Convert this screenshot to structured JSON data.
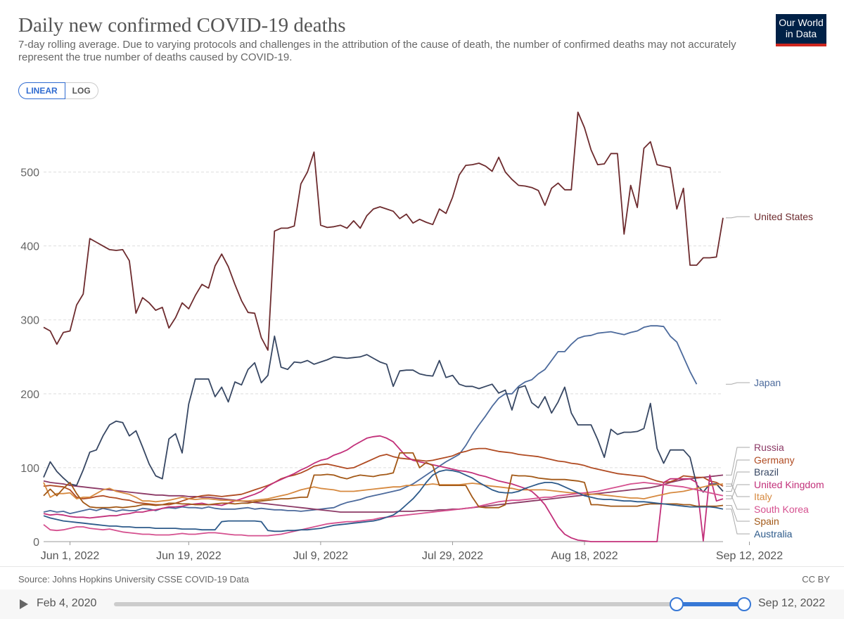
{
  "header": {
    "title": "Daily new confirmed COVID-19 deaths",
    "subtitle": "7-day rolling average. Due to varying protocols and challenges in the attribution of the cause of death, the number of confirmed deaths may not accurately represent the true number of deaths caused by COVID-19.",
    "logo_line1": "Our World",
    "logo_line2": "in Data"
  },
  "scale_toggle": {
    "linear": "LINEAR",
    "log": "LOG",
    "selected": "LINEAR"
  },
  "footer": {
    "source": "Source: Johns Hopkins University CSSE COVID-19 Data",
    "license": "CC BY"
  },
  "timeline": {
    "start": "Feb 4, 2020",
    "end": "Sep 12, 2022",
    "play_icon": "play-icon"
  },
  "chart_data": {
    "type": "line",
    "ylim": [
      0,
      590
    ],
    "yticks": [
      0,
      100,
      200,
      300,
      400,
      500
    ],
    "xticks": [
      {
        "label": "Jun 1, 2022",
        "day": 4
      },
      {
        "label": "Jun 19, 2022",
        "day": 22
      },
      {
        "label": "Jul 9, 2022",
        "day": 42
      },
      {
        "label": "Jul 29, 2022",
        "day": 62
      },
      {
        "label": "Aug 18, 2022",
        "day": 82
      },
      {
        "label": "Sep 12, 2022",
        "day": 107
      }
    ],
    "grid": "horizontal-dashed",
    "legend": "right, end-labels",
    "series": [
      {
        "name": "United States",
        "color": "#6d2b2e",
        "values": [
          290,
          285,
          267,
          283,
          285,
          320,
          335,
          410,
          405,
          400,
          395,
          394,
          395,
          380,
          309,
          330,
          323,
          313,
          317,
          289,
          303,
          323,
          315,
          333,
          348,
          343,
          373,
          389,
          372,
          348,
          326,
          310,
          309,
          276,
          259,
          420,
          424,
          424,
          427,
          484,
          500,
          527,
          428,
          425,
          426,
          428,
          424,
          434,
          424,
          441,
          450,
          453,
          450,
          447,
          437,
          443,
          431,
          436,
          432,
          429,
          450,
          444,
          466,
          496,
          509,
          510,
          512,
          508,
          501,
          520,
          500,
          490,
          482,
          481,
          479,
          475,
          455,
          478,
          485,
          476,
          476,
          581,
          560,
          530,
          510,
          511,
          525,
          525,
          416,
          482,
          452,
          532,
          541,
          510,
          508,
          506,
          450,
          478,
          374,
          374,
          384,
          384,
          385,
          438
        ]
      },
      {
        "name": "Japan",
        "color": "#4c6a9c",
        "values": [
          40,
          42,
          40,
          41,
          38,
          40,
          42,
          44,
          42,
          45,
          43,
          41,
          43,
          42,
          42,
          45,
          44,
          42,
          45,
          46,
          45,
          47,
          46,
          46,
          45,
          47,
          45,
          44,
          44,
          44,
          45,
          46,
          44,
          45,
          44,
          43,
          43,
          42,
          42,
          41,
          42,
          43,
          44,
          45,
          46,
          50,
          53,
          55,
          57,
          60,
          62,
          64,
          66,
          68,
          70,
          74,
          78,
          84,
          90,
          96,
          102,
          108,
          113,
          118,
          130,
          145,
          158,
          170,
          183,
          194,
          200,
          200,
          210,
          216,
          219,
          227,
          233,
          245,
          257,
          257,
          267,
          275,
          278,
          279,
          282,
          283,
          284,
          282,
          280,
          283,
          285,
          290,
          292,
          292,
          291,
          278,
          270,
          250,
          230,
          213
        ]
      },
      {
        "name": "Russia",
        "color": "#8c3a66",
        "values": [
          82,
          80,
          79,
          78,
          76,
          75,
          74,
          73,
          72,
          71,
          70,
          69,
          68,
          67,
          66,
          65,
          64,
          63,
          63,
          62,
          62,
          62,
          61,
          61,
          60,
          60,
          59,
          58,
          57,
          56,
          55,
          54,
          53,
          52,
          51,
          50,
          49,
          48,
          47,
          46,
          45,
          44,
          43,
          42,
          41,
          40,
          40,
          40,
          40,
          40,
          40,
          40,
          40,
          40,
          41,
          41,
          41,
          42,
          42,
          42,
          43,
          43,
          44,
          44,
          45,
          46,
          47,
          48,
          49,
          50,
          51,
          52,
          53,
          54,
          55,
          56,
          57,
          58,
          59,
          60,
          61,
          62,
          63,
          64,
          65,
          66,
          67,
          68,
          69,
          70,
          71,
          72,
          73,
          75,
          77,
          80,
          82,
          84,
          85,
          86,
          87,
          88,
          89,
          90
        ]
      },
      {
        "name": "Germany",
        "color": "#b04b22",
        "values": [
          75,
          76,
          75,
          74,
          70,
          60,
          58,
          59,
          61,
          62,
          60,
          59,
          57,
          56,
          53,
          52,
          51,
          50,
          50,
          50,
          52,
          55,
          58,
          60,
          62,
          63,
          62,
          61,
          62,
          63,
          64,
          67,
          70,
          73,
          76,
          80,
          85,
          88,
          90,
          93,
          97,
          102,
          104,
          105,
          103,
          101,
          99,
          100,
          104,
          108,
          112,
          116,
          118,
          115,
          113,
          112,
          111,
          110,
          109,
          110,
          112,
          114,
          116,
          120,
          122,
          125,
          126,
          126,
          124,
          122,
          121,
          120,
          118,
          117,
          116,
          115,
          113,
          111,
          109,
          108,
          106,
          105,
          103,
          100,
          98,
          96,
          94,
          92,
          91,
          90,
          89,
          88,
          85,
          82,
          80,
          81,
          84,
          89,
          88,
          87,
          87,
          82,
          80,
          75
        ]
      },
      {
        "name": "Brazil",
        "color": "#374763",
        "values": [
          87,
          108,
          95,
          86,
          78,
          76,
          97,
          121,
          124,
          143,
          158,
          163,
          161,
          143,
          150,
          128,
          105,
          89,
          85,
          139,
          146,
          120,
          186,
          220,
          220,
          220,
          196,
          209,
          189,
          216,
          212,
          233,
          242,
          215,
          225,
          278,
          236,
          233,
          243,
          242,
          245,
          240,
          243,
          246,
          250,
          249,
          248,
          249,
          250,
          253,
          248,
          243,
          240,
          210,
          231,
          232,
          232,
          227,
          225,
          224,
          245,
          222,
          225,
          213,
          210,
          210,
          207,
          210,
          213,
          201,
          205,
          178,
          208,
          211,
          188,
          181,
          196,
          174,
          189,
          209,
          174,
          158,
          158,
          158,
          138,
          114,
          152,
          145,
          148,
          148,
          149,
          153,
          187,
          126,
          106,
          124,
          124,
          124,
          114,
          77,
          67,
          78,
          78,
          68
        ]
      },
      {
        "name": "United Kingdom",
        "color": "#c2307a",
        "values": [
          38,
          36,
          37,
          36,
          34,
          33,
          33,
          32,
          33,
          34,
          35,
          35,
          37,
          38,
          40,
          40,
          42,
          43,
          45,
          47,
          47,
          48,
          50,
          51,
          52,
          50,
          50,
          49,
          52,
          55,
          58,
          61,
          64,
          68,
          75,
          80,
          84,
          88,
          92,
          97,
          101,
          106,
          110,
          112,
          117,
          120,
          124,
          130,
          135,
          140,
          142,
          143,
          140,
          135,
          125,
          115,
          110,
          108,
          106,
          104,
          102,
          100,
          98,
          96,
          95,
          93,
          90,
          88,
          85,
          82,
          80,
          78,
          75,
          72,
          68,
          60,
          50,
          35,
          20,
          10,
          5,
          2,
          1,
          0,
          0,
          0,
          0,
          0,
          0,
          0,
          0,
          0,
          0,
          0,
          80,
          85,
          85,
          85,
          85,
          80,
          1,
          90,
          55,
          58
        ]
      },
      {
        "name": "Italy",
        "color": "#d6893f",
        "values": [
          80,
          60,
          65,
          65,
          66,
          58,
          60,
          60,
          65,
          70,
          72,
          68,
          66,
          64,
          60,
          55,
          55,
          54,
          55,
          56,
          58,
          60,
          58,
          57,
          58,
          58,
          57,
          56,
          56,
          55,
          55,
          55,
          56,
          57,
          58,
          60,
          62,
          64,
          67,
          70,
          72,
          74,
          72,
          71,
          70,
          68,
          68,
          68,
          69,
          70,
          71,
          72,
          73,
          74,
          74,
          76,
          76,
          77,
          77,
          78,
          77,
          77,
          77,
          77,
          78,
          79,
          78,
          76,
          75,
          74,
          73,
          72,
          70,
          70,
          70,
          70,
          70,
          69,
          68,
          67,
          66,
          66,
          65,
          64,
          64,
          63,
          62,
          61,
          60,
          59,
          59,
          58,
          60,
          62,
          64,
          66,
          67,
          68,
          70,
          72,
          74,
          76,
          77,
          78
        ]
      },
      {
        "name": "South Korea",
        "color": "#d5508f",
        "values": [
          23,
          16,
          15,
          16,
          18,
          20,
          20,
          18,
          17,
          16,
          17,
          15,
          13,
          12,
          11,
          10,
          10,
          9,
          9,
          9,
          10,
          11,
          10,
          10,
          11,
          12,
          12,
          11,
          10,
          9,
          9,
          8,
          8,
          8,
          8,
          9,
          10,
          12,
          14,
          16,
          18,
          20,
          22,
          24,
          25,
          26,
          27,
          27,
          28,
          29,
          30,
          32,
          33,
          34,
          35,
          36,
          37,
          38,
          39,
          40,
          41,
          42,
          43,
          44,
          45,
          46,
          48,
          50,
          52,
          54,
          55,
          56,
          56,
          57,
          58,
          59,
          60,
          60,
          62,
          63,
          64,
          65,
          66,
          67,
          68,
          70,
          72,
          74,
          76,
          78,
          79,
          80,
          79,
          78,
          77,
          76,
          75,
          74,
          72,
          70,
          68,
          66,
          64,
          62
        ]
      },
      {
        "name": "Spain",
        "color": "#a25816",
        "values": [
          62,
          71,
          62,
          72,
          80,
          65,
          53,
          47,
          46,
          46,
          46,
          47,
          46,
          47,
          48,
          50,
          50,
          49,
          50,
          52,
          52,
          51,
          51,
          50,
          50,
          50,
          51,
          52,
          52,
          51,
          52,
          52,
          54,
          55,
          56,
          57,
          58,
          58,
          59,
          60,
          60,
          90,
          90,
          91,
          90,
          87,
          85,
          88,
          90,
          89,
          88,
          90,
          91,
          93,
          120,
          120,
          120,
          100,
          107,
          103,
          76,
          76,
          76,
          76,
          76,
          60,
          47,
          46,
          46,
          46,
          50,
          90,
          89,
          89,
          88,
          86,
          85,
          84,
          84,
          84,
          83,
          82,
          80,
          50,
          50,
          49,
          48,
          48,
          48,
          48,
          48,
          50,
          51,
          51,
          51,
          51,
          51,
          50,
          50,
          48,
          48,
          48,
          48,
          49
        ]
      },
      {
        "name": "Australia",
        "color": "#2d5a8a",
        "values": [
          35,
          32,
          30,
          28,
          27,
          26,
          25,
          24,
          23,
          22,
          21,
          21,
          20,
          20,
          19,
          19,
          19,
          18,
          18,
          18,
          18,
          17,
          17,
          17,
          16,
          16,
          16,
          27,
          28,
          28,
          28,
          28,
          28,
          27,
          15,
          14,
          14,
          15,
          15,
          16,
          16,
          17,
          18,
          20,
          22,
          23,
          24,
          25,
          26,
          27,
          28,
          30,
          33,
          36,
          42,
          50,
          58,
          68,
          80,
          90,
          95,
          97,
          96,
          94,
          90,
          86,
          80,
          75,
          70,
          67,
          66,
          66,
          68,
          72,
          75,
          78,
          80,
          80,
          78,
          74,
          70,
          66,
          62,
          60,
          58,
          57,
          57,
          56,
          55,
          55,
          54,
          54,
          53,
          52,
          51,
          50,
          49,
          48,
          47,
          47,
          47,
          47,
          46,
          44
        ]
      }
    ]
  }
}
